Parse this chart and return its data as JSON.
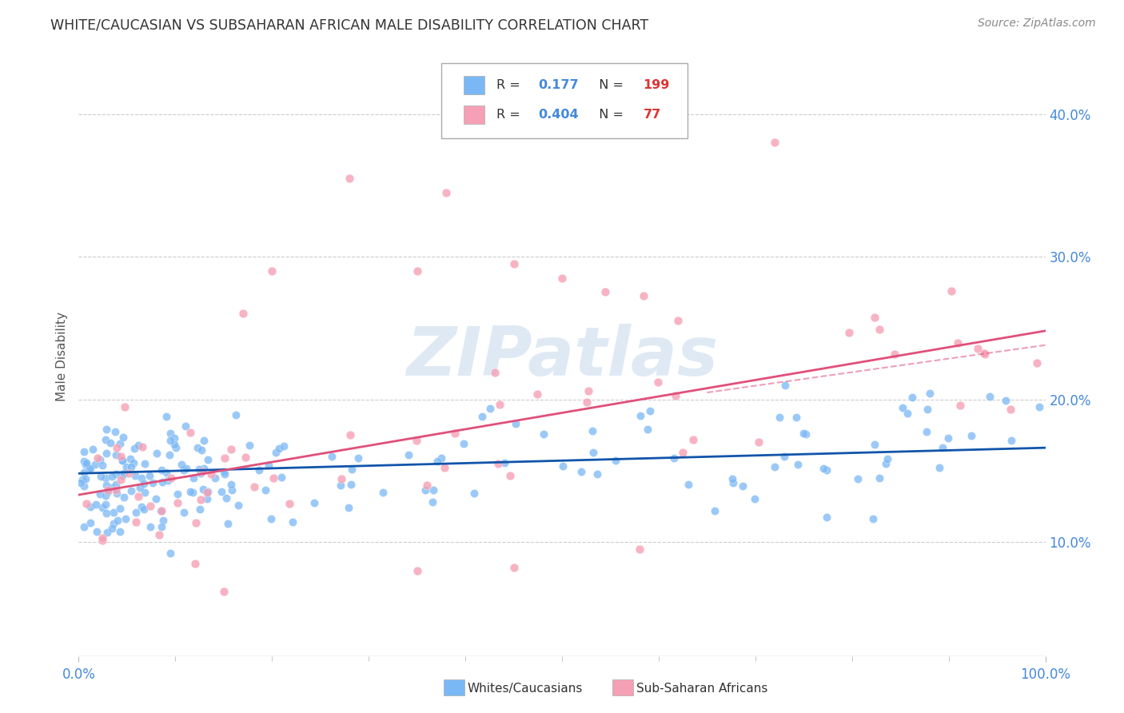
{
  "title": "WHITE/CAUCASIAN VS SUBSAHARAN AFRICAN MALE DISABILITY CORRELATION CHART",
  "source": "Source: ZipAtlas.com",
  "ylabel": "Male Disability",
  "xlim": [
    0.0,
    1.0
  ],
  "ylim": [
    0.02,
    0.44
  ],
  "ytick_values": [
    0.1,
    0.2,
    0.3,
    0.4
  ],
  "ytick_labels": [
    "10.0%",
    "20.0%",
    "30.0%",
    "40.0%"
  ],
  "white_color": "#7ab8f5",
  "african_color": "#f5a0b5",
  "white_line_color": "#1155aa",
  "african_line_color": "#e0507a",
  "white_R": 0.177,
  "white_N": 199,
  "african_R": 0.404,
  "african_N": 77,
  "watermark_text": "ZIPatlas",
  "legend_label_white": "Whites/Caucasians",
  "legend_label_african": "Sub-Saharan Africans",
  "R_color": "#4488dd",
  "N_color": "#dd3333",
  "grid_color": "#cccccc",
  "title_color": "#333333",
  "source_color": "#888888",
  "tick_label_color": "#4488dd"
}
